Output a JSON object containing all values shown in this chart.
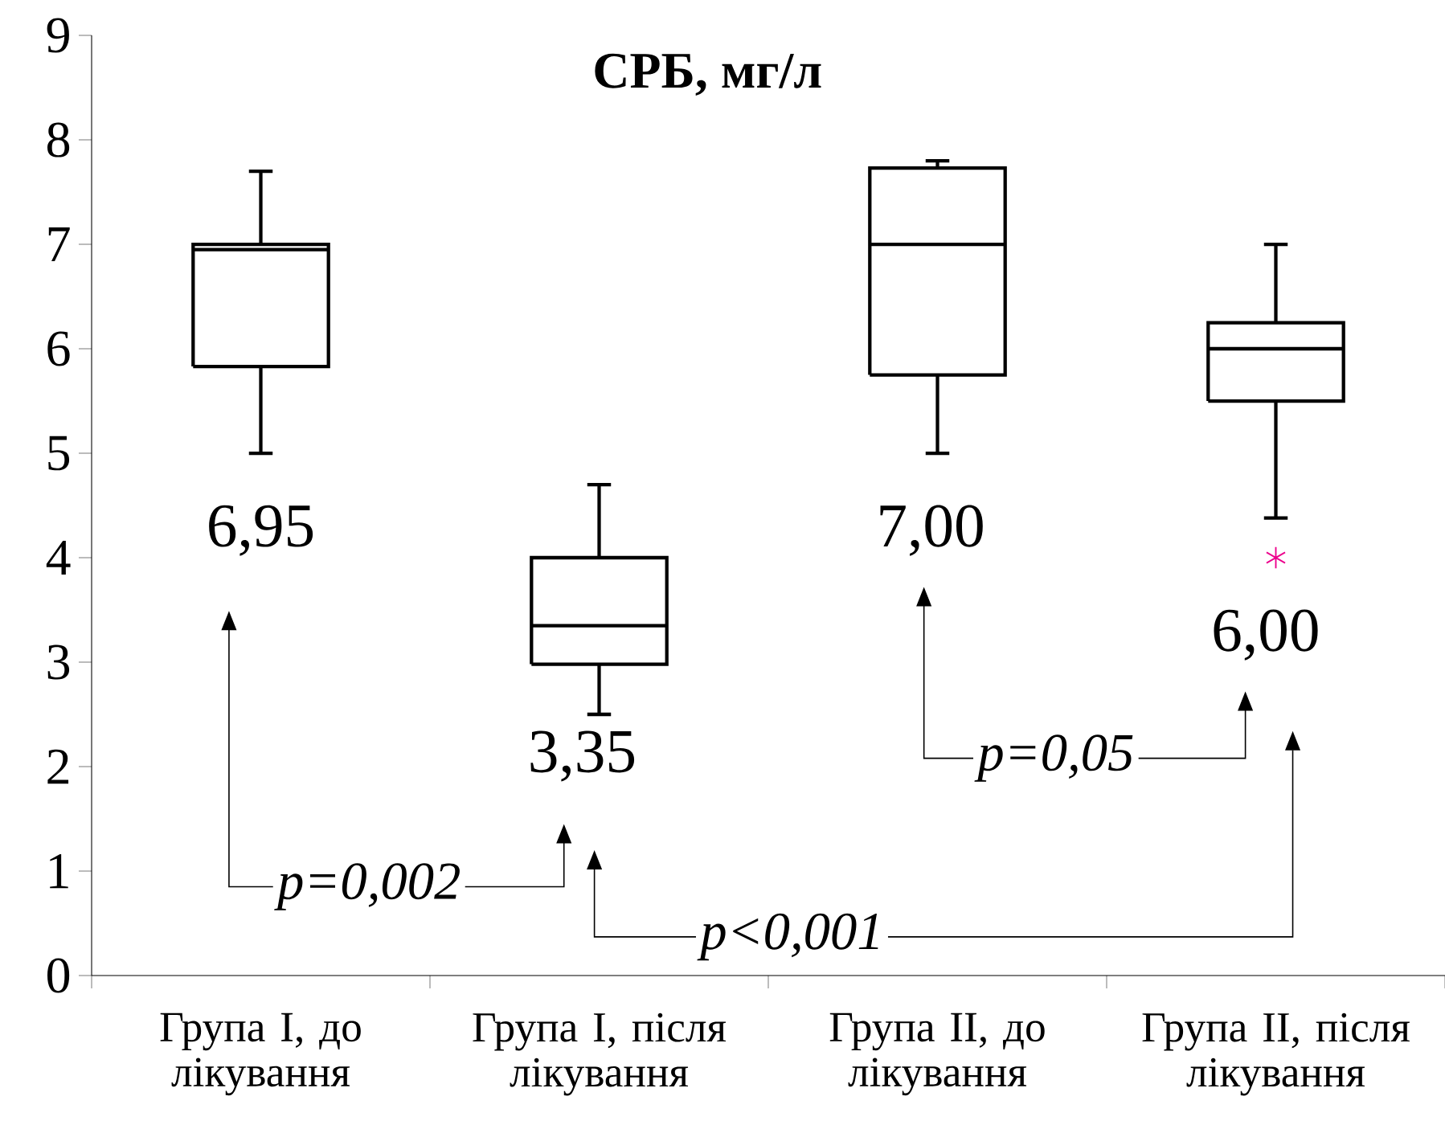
{
  "chart_data": {
    "type": "box",
    "title": "СРБ, мг/л",
    "categories": [
      "Група І, до лікування",
      "Група І, після лікування",
      "Група ІІ, до лікування",
      "Група ІІ, після лікування"
    ],
    "series": [
      {
        "color": "#000000",
        "boxes": [
          {
            "low": 5.0,
            "q1": 5.83,
            "median": 6.95,
            "q3": 7.0,
            "high": 7.7
          },
          {
            "low": 2.5,
            "q1": 2.98,
            "median": 3.35,
            "q3": 4.0,
            "high": 4.7
          },
          {
            "low": 5.0,
            "q1": 5.75,
            "median": 7.0,
            "q3": 7.73,
            "high": 7.8
          },
          {
            "low": 4.38,
            "q1": 5.5,
            "median": 6.0,
            "q3": 6.25,
            "high": 7.0,
            "outliers": [
              4.0
            ]
          }
        ]
      }
    ],
    "ylim": [
      0,
      9
    ],
    "yticks": [
      0,
      1,
      2,
      3,
      4,
      5,
      6,
      7,
      8,
      9
    ],
    "annotations": [
      "6,95",
      "3,35",
      "7,00",
      "6,00",
      "p=0,002",
      "p<0,001",
      "p=0,05"
    ]
  }
}
